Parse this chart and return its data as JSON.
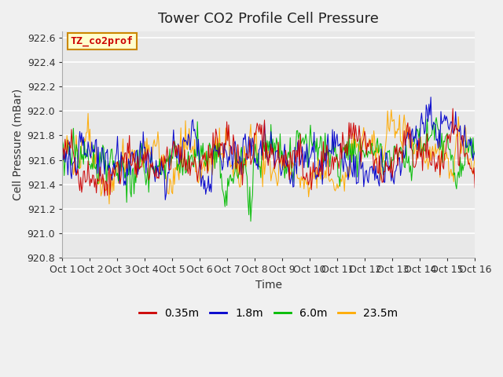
{
  "title": "Tower CO2 Profile Cell Pressure",
  "xlabel": "Time",
  "ylabel": "Cell Pressure (mBar)",
  "ylim": [
    920.8,
    922.65
  ],
  "xlim": [
    0,
    15
  ],
  "xtick_labels": [
    "Oct 1",
    "Oct 2",
    "Oct 3",
    "Oct 4",
    "Oct 5",
    "Oct 6",
    "Oct 7",
    "Oct 8",
    "Oct 9",
    "Oct 10",
    "Oct 11",
    "Oct 12",
    "Oct 13",
    "Oct 14",
    "Oct 15",
    "Oct 16"
  ],
  "ytick_values": [
    920.8,
    921.0,
    921.2,
    921.4,
    921.6,
    921.8,
    922.0,
    922.2,
    922.4,
    922.6
  ],
  "series_colors": [
    "#cc0000",
    "#0000cc",
    "#00bb00",
    "#ffaa00"
  ],
  "series_labels": [
    "0.35m",
    "1.8m",
    "6.0m",
    "23.5m"
  ],
  "annotation_text": "TZ_co2prof",
  "annotation_color": "#cc0000",
  "annotation_bg": "#ffffcc",
  "annotation_border": "#cc8800",
  "bg_color": "#e8e8e8",
  "grid_color": "#ffffff",
  "title_fontsize": 13,
  "axis_fontsize": 10,
  "tick_fontsize": 9,
  "legend_fontsize": 10,
  "seed": 42,
  "n_points": 450,
  "base_pressure": 921.6,
  "amplitude": 0.38
}
